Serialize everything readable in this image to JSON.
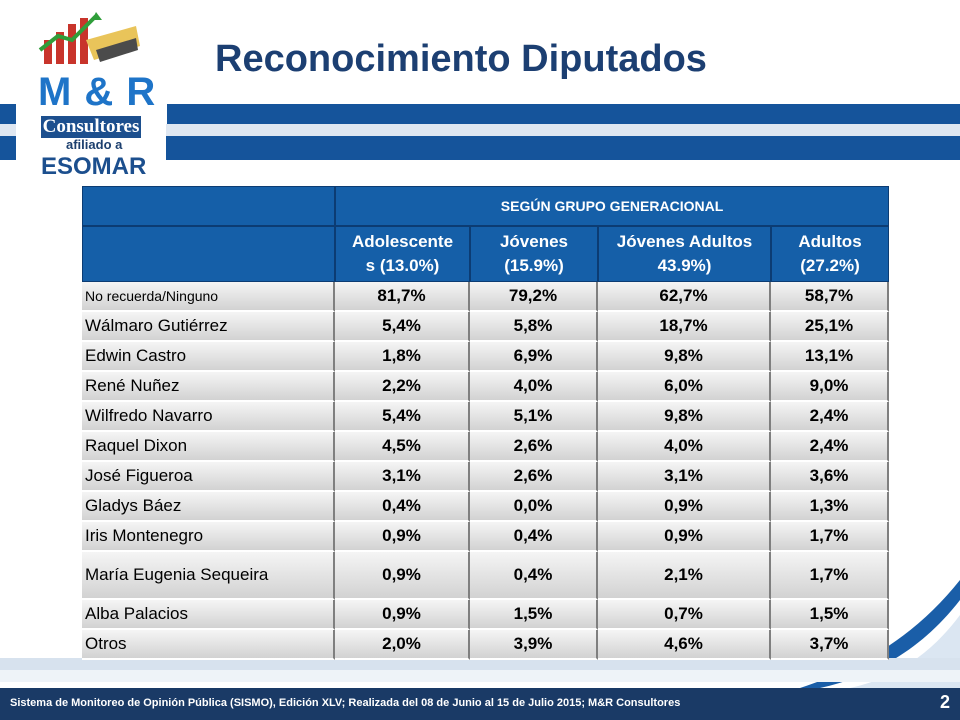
{
  "header": {
    "title": "Reconocimiento Diputados"
  },
  "logo": {
    "brand": "M & R",
    "name": "Consultores",
    "affiliation": "afiliado a",
    "partner": "ESOMAR"
  },
  "table": {
    "group_header": "SEGÚN GRUPO GENERACIONAL",
    "columns": [
      {
        "line1": "Adolescente",
        "line2": "s (13.0%)"
      },
      {
        "line1": "Jóvenes",
        "line2": "(15.9%)"
      },
      {
        "line1": "Jóvenes Adultos",
        "line2": "43.9%)"
      },
      {
        "line1": "Adultos",
        "line2": "(27.2%)"
      }
    ],
    "rows": [
      {
        "name": "No recuerda/Ninguno",
        "values": [
          "81,7%",
          "79,2%",
          "62,7%",
          "58,7%"
        ]
      },
      {
        "name": "Wálmaro Gutiérrez",
        "values": [
          "5,4%",
          "5,8%",
          "18,7%",
          "25,1%"
        ]
      },
      {
        "name": "Edwin Castro",
        "values": [
          "1,8%",
          "6,9%",
          "9,8%",
          "13,1%"
        ]
      },
      {
        "name": "René Nuñez",
        "values": [
          "2,2%",
          "4,0%",
          "6,0%",
          "9,0%"
        ]
      },
      {
        "name": "Wilfredo Navarro",
        "values": [
          "5,4%",
          "5,1%",
          "9,8%",
          "2,4%"
        ]
      },
      {
        "name": "Raquel Dixon",
        "values": [
          "4,5%",
          "2,6%",
          "4,0%",
          "2,4%"
        ]
      },
      {
        "name": "José Figueroa",
        "values": [
          "3,1%",
          "2,6%",
          "3,1%",
          "3,6%"
        ]
      },
      {
        "name": "Gladys Báez",
        "values": [
          "0,4%",
          "0,0%",
          "0,9%",
          "1,3%"
        ]
      },
      {
        "name": "Iris Montenegro",
        "values": [
          "0,9%",
          "0,4%",
          "0,9%",
          "1,7%"
        ]
      },
      {
        "name": "María Eugenia Sequeira",
        "values": [
          "0,9%",
          "0,4%",
          "2,1%",
          "1,7%"
        ]
      },
      {
        "name": "Alba Palacios",
        "values": [
          "0,9%",
          "1,5%",
          "0,7%",
          "1,5%"
        ]
      },
      {
        "name": "Otros",
        "values": [
          "2,0%",
          "3,9%",
          "4,6%",
          "3,7%"
        ]
      }
    ]
  },
  "footer": {
    "text": "Sistema de Monitoreo de Opinión Pública (SISMO), Edición XLV; Realizada del 08 de Junio al 15 de Julio 2015; M&R Consultores",
    "page": "2"
  }
}
